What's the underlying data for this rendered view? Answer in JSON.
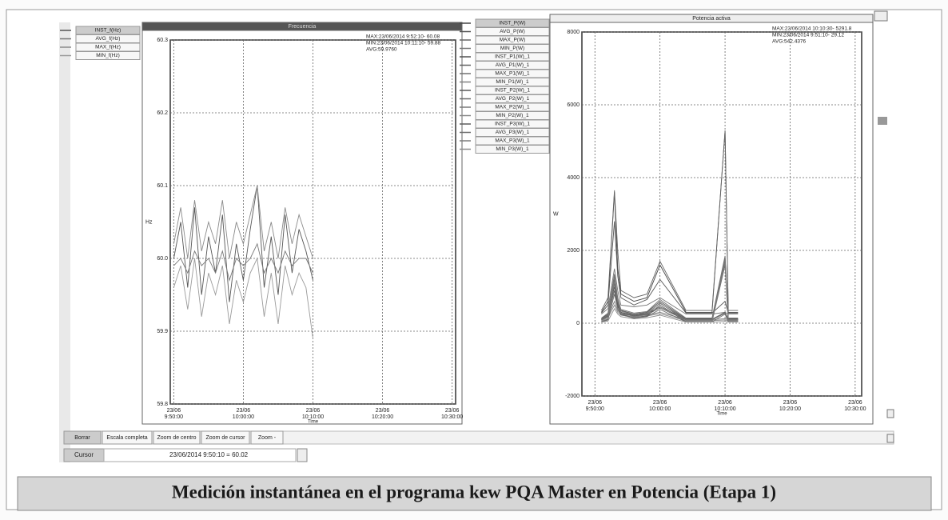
{
  "chart_data": [
    {
      "type": "line",
      "title": "Frecuencia",
      "y_label": "Hz",
      "x_label": "Time",
      "annotations": [
        "MAX:23/06/2014 9:52:10- 60.08",
        "MIN:23/06/2014 10:11:10- 59.88",
        "AVG:59.9760"
      ],
      "xlim": [
        589.5,
        630.5
      ],
      "xticks": [
        {
          "value": 590,
          "label": "23/06 9:50:00"
        },
        {
          "value": 600,
          "label": "23/06 10:00:00"
        },
        {
          "value": 610,
          "label": "23/06 10:10:00"
        },
        {
          "value": 620,
          "label": "23/06 10:20:00"
        },
        {
          "value": 630,
          "label": "23/06 10:30:00"
        }
      ],
      "ylim": [
        59.8,
        60.3
      ],
      "yticks": [
        59.8,
        59.9,
        {
          "value": 60,
          "label": "60.0"
        },
        60.1,
        60.2,
        60.3
      ],
      "grid": true,
      "x": [
        590,
        591,
        592,
        593,
        594,
        595,
        596,
        597,
        598,
        599,
        600,
        601,
        602,
        603,
        604,
        605,
        606,
        607,
        608,
        609,
        610
      ],
      "series": [
        {
          "name": "INST_f(Hz)",
          "color": "#555555",
          "values": [
            60.0,
            60.05,
            59.96,
            60.07,
            59.95,
            60.03,
            59.98,
            60.06,
            59.94,
            60.02,
            59.97,
            60.04,
            60.1,
            59.96,
            60.03,
            59.95,
            60.06,
            59.98,
            60.04,
            60.01,
            59.97
          ]
        },
        {
          "name": "AVG_f(Hz)",
          "color": "#777777",
          "values": [
            59.99,
            60.0,
            59.98,
            60.01,
            59.99,
            60.0,
            59.98,
            60.01,
            59.97,
            60.0,
            59.99,
            60.0,
            60.02,
            59.98,
            60.0,
            59.98,
            60.01,
            59.99,
            60.0,
            60.0,
            59.98
          ]
        },
        {
          "name": "MAX_f(Hz)",
          "color": "#8a8a8a",
          "values": [
            60.02,
            60.07,
            60.0,
            60.08,
            60.01,
            60.05,
            60.02,
            60.08,
            60.0,
            60.05,
            60.02,
            60.06,
            60.1,
            60.01,
            60.05,
            60.0,
            60.07,
            60.02,
            60.06,
            60.03,
            60.0
          ]
        },
        {
          "name": "MIN_f(Hz)",
          "color": "#9a9a9a",
          "values": [
            59.96,
            59.99,
            59.93,
            60.0,
            59.92,
            59.98,
            59.95,
            59.99,
            59.91,
            59.97,
            59.94,
            59.98,
            60.0,
            59.92,
            59.98,
            59.91,
            59.99,
            59.95,
            59.98,
            59.96,
            59.89
          ]
        }
      ]
    },
    {
      "type": "line",
      "title": "Potencia activa",
      "y_label": "W",
      "x_label": "Time",
      "annotations": [
        "MAX:23/06/2014 10:10:30- 5291.8",
        "MIN:23/06/2014 9:51:10- 29.12",
        "AVG:542.4376"
      ],
      "xlim": [
        588,
        631
      ],
      "xticks": [
        {
          "value": 590,
          "label": "23/06 9:50:00"
        },
        {
          "value": 600,
          "label": "23/06 10:00:00"
        },
        {
          "value": 610,
          "label": "23/06 10:10:00"
        },
        {
          "value": 620,
          "label": "23/06 10:20:00"
        },
        {
          "value": 630,
          "label": "23/06 10:30:00"
        }
      ],
      "ylim": [
        -2000,
        8000
      ],
      "yticks": [
        -2000,
        0,
        2000,
        4000,
        6000,
        8000
      ],
      "grid": true,
      "x": [
        591,
        592,
        593,
        593.5,
        594,
        596,
        598,
        600,
        604,
        608,
        610,
        610.5,
        612
      ],
      "series": [
        {
          "name": "INST_P(W)",
          "color": "#444444",
          "values": [
            300,
            600,
            3600,
            1500,
            800,
            600,
            700,
            1600,
            300,
            300,
            5290,
            300,
            300
          ]
        },
        {
          "name": "AVG_P(W)",
          "color": "#555555",
          "values": [
            280,
            500,
            2800,
            1300,
            700,
            500,
            650,
            1200,
            280,
            280,
            600,
            280,
            280
          ]
        },
        {
          "name": "MAX_P(W)",
          "color": "#666666",
          "values": [
            350,
            700,
            3650,
            2000,
            900,
            700,
            800,
            1700,
            350,
            350,
            5291.8,
            350,
            350
          ]
        },
        {
          "name": "MIN_P(W)",
          "color": "#777777",
          "values": [
            250,
            400,
            1500,
            900,
            500,
            450,
            500,
            700,
            250,
            250,
            300,
            250,
            250
          ]
        },
        {
          "name": "INST_P1(W)_1",
          "color": "#505050",
          "values": [
            120,
            250,
            1300,
            600,
            350,
            250,
            300,
            600,
            120,
            120,
            1800,
            120,
            120
          ]
        },
        {
          "name": "AVG_P1(W)_1",
          "color": "#606060",
          "values": [
            110,
            220,
            1000,
            500,
            300,
            220,
            260,
            450,
            110,
            110,
            300,
            110,
            110
          ]
        },
        {
          "name": "MAX_P1(W)_1",
          "color": "#707070",
          "values": [
            140,
            280,
            1350,
            700,
            380,
            280,
            320,
            650,
            140,
            140,
            1850,
            140,
            140
          ]
        },
        {
          "name": "MIN_P1(W)_1",
          "color": "#808080",
          "values": [
            100,
            180,
            600,
            350,
            250,
            200,
            220,
            300,
            100,
            100,
            120,
            100,
            100
          ]
        },
        {
          "name": "INST_P2(W)_1",
          "color": "#585858",
          "values": [
            90,
            200,
            1200,
            550,
            300,
            200,
            250,
            550,
            90,
            90,
            1700,
            90,
            90
          ]
        },
        {
          "name": "AVG_P2(W)_1",
          "color": "#686868",
          "values": [
            85,
            180,
            900,
            450,
            280,
            190,
            230,
            420,
            85,
            85,
            280,
            85,
            85
          ]
        },
        {
          "name": "MAX_P2(W)_1",
          "color": "#787878",
          "values": [
            100,
            230,
            1250,
            650,
            330,
            230,
            280,
            600,
            100,
            100,
            1750,
            100,
            100
          ]
        },
        {
          "name": "MIN_P2(W)_1",
          "color": "#888888",
          "values": [
            70,
            150,
            500,
            300,
            220,
            170,
            200,
            260,
            70,
            70,
            90,
            70,
            70
          ]
        },
        {
          "name": "INST_P3(W)_1",
          "color": "#5c5c5c",
          "values": [
            40,
            100,
            1100,
            500,
            250,
            150,
            200,
            500,
            40,
            40,
            1600,
            40,
            40
          ]
        },
        {
          "name": "AVG_P3(W)_1",
          "color": "#6c6c6c",
          "values": [
            35,
            90,
            800,
            400,
            230,
            140,
            180,
            380,
            35,
            35,
            250,
            35,
            35
          ]
        },
        {
          "name": "MAX_P3(W)_1",
          "color": "#7c7c7c",
          "values": [
            50,
            120,
            1150,
            600,
            280,
            180,
            230,
            560,
            50,
            50,
            1650,
            50,
            50
          ]
        },
        {
          "name": "MIN_P3(W)_1",
          "color": "#8c8c8c",
          "values": [
            29.12,
            60,
            400,
            250,
            180,
            120,
            150,
            220,
            30,
            30,
            50,
            30,
            30
          ]
        }
      ]
    }
  ],
  "toolbar": {
    "buttons": [
      "Borrar",
      "Escala completa",
      "Zoom de centro",
      "Zoom de cursor",
      "Zoom -"
    ]
  },
  "cursor": {
    "label": "Cursor",
    "value": "23/06/2014 9:50:10 = 60.02"
  },
  "caption": "Medición instantánea en el programa kew  PQA Master en Potencia (Etapa 1)"
}
